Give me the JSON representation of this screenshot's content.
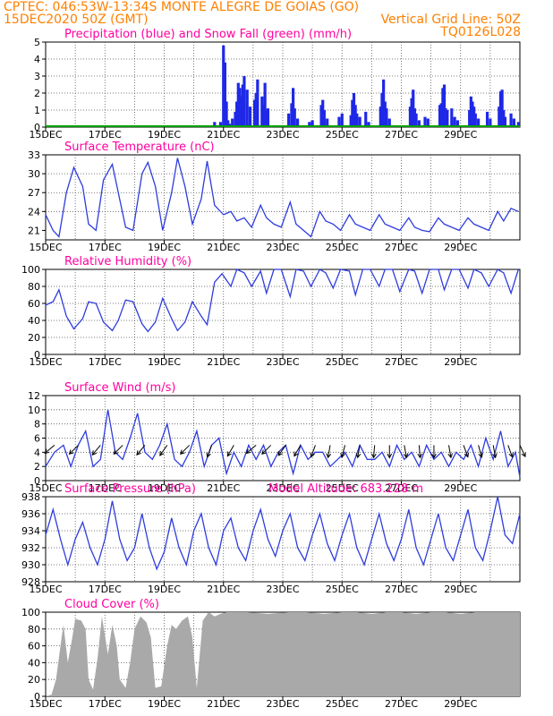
{
  "header": {
    "left_line1": "CPTEC:  046:53W-13:34S  MONTE ALEGRE DE GOIAS (GO)",
    "left_line2": "15DEC2020 50Z (GMT)",
    "right_line2": "Vertical Grid Line: 50Z",
    "right_line3": "TQ0126L028"
  },
  "colors": {
    "line": "#2e3cde",
    "precip": "#1e28e6",
    "snow": "#00a000",
    "cloud": "#a9a9a9",
    "title": "#ff00a0",
    "header": "#ff8000"
  },
  "x_ticks": [
    "15DEC",
    "17DEC",
    "19DEC",
    "21DEC",
    "23DEC",
    "25DEC",
    "27DEC",
    "29DEC"
  ],
  "chart_data": [
    {
      "type": "bar",
      "title": "Precipitation (blue) and Snow Fall (green) (mm/h)",
      "ylim": [
        0,
        5
      ],
      "yticks": [
        "0",
        "1",
        "2",
        "3",
        "4",
        "5"
      ],
      "x_unit": "days since 15DEC 00Z",
      "series": [
        {
          "name": "Precipitation",
          "x": [
            5.7,
            5.9,
            6.0,
            6.05,
            6.1,
            6.15,
            6.2,
            6.3,
            6.4,
            6.45,
            6.5,
            6.55,
            6.6,
            6.65,
            6.7,
            6.8,
            6.9,
            7.05,
            7.1,
            7.15,
            7.3,
            7.35,
            7.4,
            7.45,
            7.5,
            8.2,
            8.3,
            8.35,
            8.4,
            8.5,
            8.9,
            9.0,
            9.3,
            9.35,
            9.4,
            9.5,
            9.9,
            10.0,
            10.3,
            10.35,
            10.4,
            10.45,
            10.5,
            10.6,
            10.8,
            10.9,
            11.3,
            11.35,
            11.4,
            11.45,
            11.5,
            11.6,
            12.3,
            12.35,
            12.4,
            12.45,
            12.5,
            12.6,
            12.8,
            12.9,
            13.3,
            13.35,
            13.4,
            13.45,
            13.5,
            13.55,
            13.7,
            13.8,
            13.9,
            14.3,
            14.35,
            14.4,
            14.45,
            14.5,
            14.6,
            14.9,
            15.0,
            15.3,
            15.35,
            15.4,
            15.45,
            15.5,
            15.7,
            15.8,
            15.95
          ],
          "values": [
            0.3,
            0.3,
            4.8,
            3.8,
            1.5,
            0.4,
            0.2,
            0.5,
            0.9,
            1.5,
            2.6,
            2.3,
            1.8,
            2.5,
            3.0,
            2.2,
            1.2,
            1.6,
            2.0,
            2.8,
            1.8,
            1.3,
            2.6,
            1.0,
            1.1,
            0.8,
            1.4,
            2.3,
            1.1,
            0.5,
            0.3,
            0.4,
            1.3,
            1.6,
            1.0,
            0.5,
            0.6,
            0.8,
            0.7,
            1.6,
            2.0,
            1.3,
            0.8,
            0.6,
            0.9,
            0.3,
            1.2,
            2.0,
            2.8,
            1.5,
            1.1,
            0.5,
            1.2,
            1.7,
            2.2,
            1.1,
            0.8,
            0.4,
            0.6,
            0.5,
            1.3,
            1.4,
            2.3,
            2.5,
            1.1,
            1.0,
            1.1,
            0.6,
            0.4,
            1.0,
            1.8,
            1.5,
            1.2,
            0.8,
            0.5,
            0.9,
            0.5,
            1.2,
            2.1,
            2.2,
            1.0,
            0.6,
            0.8,
            0.5,
            0.3
          ]
        },
        {
          "name": "Snow Fall",
          "x": [
            0,
            16
          ],
          "values": [
            0,
            0
          ]
        }
      ]
    },
    {
      "type": "line",
      "title": "Surface Temperature (nC)",
      "ylim": [
        19.5,
        33
      ],
      "yticks": [
        "21",
        "24",
        "27",
        "30",
        "33"
      ],
      "series": [
        {
          "name": "Temperature",
          "x": [
            0,
            0.25,
            0.45,
            0.7,
            0.95,
            1.25,
            1.45,
            1.7,
            1.95,
            2.25,
            2.45,
            2.7,
            2.95,
            3.25,
            3.45,
            3.7,
            3.95,
            4.25,
            4.45,
            4.7,
            4.95,
            5.25,
            5.45,
            5.7,
            6.0,
            6.25,
            6.45,
            6.7,
            6.95,
            7.25,
            7.45,
            7.7,
            7.95,
            8.25,
            8.45,
            8.7,
            8.95,
            9.25,
            9.45,
            9.7,
            9.95,
            10.25,
            10.45,
            10.7,
            10.95,
            11.25,
            11.45,
            11.7,
            11.95,
            12.25,
            12.45,
            12.7,
            12.95,
            13.25,
            13.45,
            13.7,
            13.95,
            14.25,
            14.45,
            14.7,
            14.95,
            15.25,
            15.45,
            15.7,
            15.95
          ],
          "values": [
            23.5,
            21,
            20,
            27,
            31,
            28,
            22,
            21,
            29,
            31.5,
            27,
            21.5,
            21,
            30,
            31.8,
            28,
            21,
            27,
            32.5,
            28,
            22,
            26,
            32,
            25,
            23.5,
            24,
            22.5,
            23,
            21.5,
            25,
            23,
            22,
            21.5,
            25.5,
            22,
            21,
            20,
            24,
            22.5,
            22,
            21,
            23.5,
            22,
            21.5,
            21,
            23.5,
            22,
            21.5,
            21,
            23,
            21.5,
            21,
            20.8,
            23,
            22,
            21.5,
            21,
            23,
            22,
            21.5,
            21,
            24,
            22.5,
            24.5,
            24
          ]
        }
      ]
    },
    {
      "type": "line",
      "title": "Relative Humidity (%)",
      "ylim": [
        0,
        100
      ],
      "yticks": [
        "0",
        "20",
        "40",
        "60",
        "80",
        "100"
      ],
      "series": [
        {
          "name": "RH",
          "x": [
            0,
            0.25,
            0.45,
            0.7,
            0.95,
            1.25,
            1.45,
            1.7,
            1.95,
            2.25,
            2.45,
            2.7,
            2.95,
            3.25,
            3.45,
            3.7,
            3.95,
            4.25,
            4.45,
            4.7,
            4.95,
            5.25,
            5.45,
            5.7,
            5.95,
            6.25,
            6.45,
            6.7,
            6.95,
            7.25,
            7.45,
            7.7,
            7.95,
            8.25,
            8.45,
            8.7,
            8.95,
            9.25,
            9.45,
            9.7,
            9.95,
            10.25,
            10.45,
            10.7,
            10.95,
            11.25,
            11.45,
            11.7,
            11.95,
            12.25,
            12.45,
            12.7,
            12.95,
            13.25,
            13.45,
            13.7,
            13.95,
            14.25,
            14.45,
            14.7,
            14.95,
            15.25,
            15.45,
            15.7,
            15.95
          ],
          "values": [
            58,
            62,
            76,
            45,
            30,
            42,
            62,
            60,
            38,
            28,
            40,
            64,
            62,
            36,
            27,
            38,
            66,
            42,
            28,
            38,
            62,
            45,
            35,
            85,
            95,
            80,
            100,
            96,
            80,
            98,
            72,
            100,
            100,
            68,
            100,
            98,
            80,
            100,
            96,
            78,
            100,
            98,
            70,
            100,
            100,
            80,
            100,
            100,
            74,
            100,
            98,
            72,
            100,
            100,
            76,
            100,
            100,
            78,
            100,
            96,
            80,
            100,
            96,
            72,
            100
          ]
        }
      ]
    },
    {
      "type": "line",
      "title": "Surface Wind (m/s)",
      "ylim": [
        0,
        12
      ],
      "yticks": [
        "0",
        "2",
        "4",
        "6",
        "8",
        "10",
        "12"
      ],
      "series": [
        {
          "name": "Wind speed",
          "x": [
            0,
            0.3,
            0.6,
            0.85,
            1.1,
            1.35,
            1.6,
            1.85,
            2.1,
            2.35,
            2.6,
            2.85,
            3.1,
            3.35,
            3.6,
            3.85,
            4.1,
            4.35,
            4.6,
            4.85,
            5.1,
            5.35,
            5.6,
            5.85,
            6.1,
            6.35,
            6.6,
            6.85,
            7.1,
            7.35,
            7.6,
            7.85,
            8.1,
            8.35,
            8.6,
            8.85,
            9.1,
            9.35,
            9.6,
            9.85,
            10.1,
            10.35,
            10.6,
            10.85,
            11.1,
            11.35,
            11.6,
            11.85,
            12.1,
            12.35,
            12.6,
            12.85,
            13.1,
            13.35,
            13.6,
            13.85,
            14.1,
            14.35,
            14.6,
            14.85,
            15.1,
            15.35,
            15.6,
            15.85,
            16
          ],
          "values": [
            2,
            4,
            5,
            2,
            5,
            7,
            2,
            3,
            10,
            4,
            3,
            6,
            9.5,
            4,
            3,
            5,
            8,
            3,
            2,
            4,
            7,
            2,
            5,
            6,
            1,
            4,
            2,
            5,
            3,
            5,
            2,
            4,
            5,
            1,
            5,
            3,
            4,
            4,
            2,
            3,
            4,
            2,
            5,
            3,
            3,
            4,
            2,
            5,
            3,
            4,
            2,
            5,
            3,
            4,
            2,
            4,
            3,
            5,
            2,
            6,
            3,
            7,
            2,
            4,
            0.5
          ]
        }
      ],
      "wind_arrows_x": [
        0.3,
        1.1,
        1.85,
        2.6,
        3.35,
        4.1,
        4.85,
        5.6,
        6.35,
        7.1,
        7.6,
        8.1,
        8.6,
        9.1,
        9.6,
        10.1,
        10.6,
        11.1,
        11.6,
        12.1,
        12.6,
        13.1,
        13.6,
        14.1,
        14.6,
        15.1,
        15.6,
        16
      ],
      "wind_arrows_dir": [
        230,
        225,
        220,
        225,
        220,
        215,
        225,
        200,
        210,
        230,
        225,
        215,
        210,
        200,
        190,
        195,
        190,
        185,
        180,
        170,
        175,
        180,
        170,
        160,
        165,
        170,
        160,
        155
      ]
    },
    {
      "type": "line",
      "title": "Surface Pressure (hPa)",
      "annotation": "Model Altitude: 683.228  m",
      "ylim": [
        928,
        938
      ],
      "yticks": [
        "928",
        "930",
        "932",
        "934",
        "936",
        "938"
      ],
      "series": [
        {
          "name": "Pressure",
          "x": [
            0,
            0.25,
            0.5,
            0.75,
            1.0,
            1.25,
            1.5,
            1.75,
            2.0,
            2.25,
            2.5,
            2.75,
            3.0,
            3.25,
            3.5,
            3.75,
            4.0,
            4.25,
            4.5,
            4.75,
            5.0,
            5.25,
            5.5,
            5.75,
            6.0,
            6.25,
            6.5,
            6.75,
            7.0,
            7.25,
            7.5,
            7.75,
            8.0,
            8.25,
            8.5,
            8.75,
            9.0,
            9.25,
            9.5,
            9.75,
            10.0,
            10.25,
            10.5,
            10.75,
            11.0,
            11.25,
            11.5,
            11.75,
            12.0,
            12.25,
            12.5,
            12.75,
            13.0,
            13.25,
            13.5,
            13.75,
            14.0,
            14.25,
            14.5,
            14.75,
            15.0,
            15.25,
            15.5,
            15.75,
            16
          ],
          "values": [
            933.5,
            936.5,
            933,
            930,
            933,
            935,
            932,
            930,
            933,
            937.5,
            933,
            930.5,
            932,
            936,
            932,
            929.5,
            931.5,
            935.5,
            932,
            930,
            934,
            936,
            932,
            930,
            934,
            935.5,
            932,
            930.5,
            934,
            936.5,
            933,
            931,
            934,
            936,
            932,
            930.5,
            933.5,
            936,
            932.5,
            930.5,
            933.5,
            936,
            932,
            930,
            933,
            936,
            932.5,
            930.5,
            933,
            936.5,
            932,
            930,
            933,
            936,
            932,
            930.5,
            933.5,
            936.5,
            932,
            930.5,
            934,
            938,
            933.5,
            932.5,
            936
          ]
        }
      ]
    },
    {
      "type": "area",
      "title": "Cloud Cover (%)",
      "ylim": [
        0,
        100
      ],
      "yticks": [
        "0",
        "20",
        "40",
        "60",
        "80",
        "100"
      ],
      "series": [
        {
          "name": "Cloud Cover",
          "x": [
            0,
            0.2,
            0.35,
            0.5,
            0.6,
            0.75,
            0.9,
            1.0,
            1.2,
            1.35,
            1.45,
            1.6,
            1.75,
            1.9,
            2.1,
            2.25,
            2.4,
            2.5,
            2.7,
            2.85,
            3.0,
            3.2,
            3.4,
            3.55,
            3.7,
            3.9,
            4.1,
            4.25,
            4.4,
            4.6,
            4.8,
            4.95,
            5.1,
            5.3,
            5.5,
            5.7,
            5.9,
            6.1,
            6.4,
            6.8,
            7.5,
            8.2,
            8.8,
            9.4,
            10.0,
            10.5,
            11.0,
            11.5,
            12.0,
            12.5,
            13.0,
            13.5,
            14.0,
            14.5,
            15.0,
            15.5,
            16
          ],
          "values": [
            0,
            2,
            20,
            60,
            85,
            40,
            70,
            92,
            90,
            80,
            20,
            8,
            45,
            95,
            50,
            85,
            60,
            20,
            10,
            40,
            80,
            95,
            88,
            70,
            10,
            12,
            60,
            85,
            80,
            90,
            95,
            70,
            10,
            90,
            100,
            95,
            98,
            100,
            100,
            100,
            98,
            100,
            100,
            98,
            100,
            100,
            98,
            100,
            100,
            98,
            100,
            100,
            98,
            100,
            100,
            100,
            100
          ]
        }
      ]
    }
  ]
}
